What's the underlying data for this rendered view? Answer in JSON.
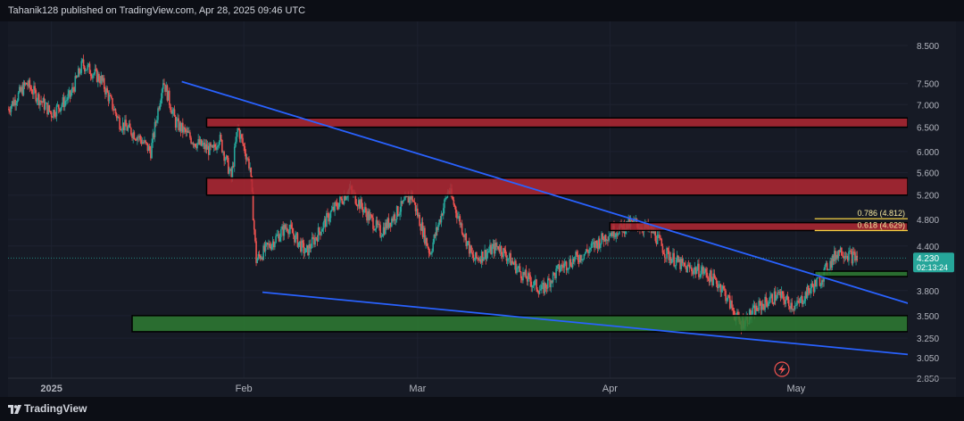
{
  "header": {
    "caption": "Tahanik128 published on TradingView.com, Apr 28, 2025 09:46 UTC"
  },
  "footer": {
    "brand": "TradingView"
  },
  "colors": {
    "background": "#161a25",
    "up_candle": "#26a69a",
    "down_candle": "#ef5350",
    "trendline": "#2962ff",
    "resistance_zone": "#b22833",
    "support_zone": "#2e7d32",
    "fib_line": "#f5d142",
    "price_tag": "#26a69a"
  },
  "icons": {
    "replay": "lightning-icon"
  },
  "chart_data": {
    "type": "candlestick",
    "x_unit": "date",
    "y_scale": "log",
    "xlabel": "",
    "ylabel": "",
    "x_ticks": [
      {
        "date": "2025-01-01",
        "label": "2025"
      },
      {
        "date": "2025-02-01",
        "label": "Feb"
      },
      {
        "date": "2025-03-01",
        "label": "Mar"
      },
      {
        "date": "2025-04-01",
        "label": "Apr"
      },
      {
        "date": "2025-05-01",
        "label": "May"
      }
    ],
    "y_ticks": [
      "8.500",
      "7.500",
      "7.000",
      "6.500",
      "6.000",
      "5.600",
      "5.200",
      "4.800",
      "4.400",
      "3.800",
      "3.500",
      "3.250",
      "3.050",
      "2.850"
    ],
    "ylim": [
      2.85,
      9.2
    ],
    "xlim": [
      "2024-12-25",
      "2025-05-19"
    ],
    "last_price": {
      "value": "4.230",
      "countdown": "02:13:24"
    },
    "price_path": [
      [
        "2024-12-25",
        6.9
      ],
      [
        "2024-12-28",
        7.5
      ],
      [
        "2025-01-01",
        6.8
      ],
      [
        "2025-01-04",
        7.2
      ],
      [
        "2025-01-06",
        8.0
      ],
      [
        "2025-01-09",
        7.6
      ],
      [
        "2025-01-12",
        6.6
      ],
      [
        "2025-01-15",
        6.3
      ],
      [
        "2025-01-17",
        6.0
      ],
      [
        "2025-01-19",
        7.6
      ],
      [
        "2025-01-21",
        6.6
      ],
      [
        "2025-01-24",
        6.2
      ],
      [
        "2025-01-27",
        6.0
      ],
      [
        "2025-01-28",
        6.3
      ],
      [
        "2025-01-30",
        5.5
      ],
      [
        "2025-01-31",
        6.5
      ],
      [
        "2025-02-02",
        5.7
      ],
      [
        "2025-02-03",
        4.2
      ],
      [
        "2025-02-05",
        4.4
      ],
      [
        "2025-02-08",
        4.7
      ],
      [
        "2025-02-11",
        4.3
      ],
      [
        "2025-02-15",
        4.9
      ],
      [
        "2025-02-18",
        5.3
      ],
      [
        "2025-02-23",
        4.6
      ],
      [
        "2025-02-28",
        5.2
      ],
      [
        "2025-03-03",
        4.3
      ],
      [
        "2025-03-06",
        5.3
      ],
      [
        "2025-03-10",
        4.2
      ],
      [
        "2025-03-14",
        4.4
      ],
      [
        "2025-03-18",
        4.0
      ],
      [
        "2025-03-21",
        3.8
      ],
      [
        "2025-03-24",
        4.1
      ],
      [
        "2025-03-28",
        4.3
      ],
      [
        "2025-04-01",
        4.6
      ],
      [
        "2025-04-05",
        4.75
      ],
      [
        "2025-04-08",
        4.6
      ],
      [
        "2025-04-10",
        4.3
      ],
      [
        "2025-04-13",
        4.1
      ],
      [
        "2025-04-16",
        4.05
      ],
      [
        "2025-04-19",
        3.85
      ],
      [
        "2025-04-22",
        3.4
      ],
      [
        "2025-04-25",
        3.6
      ],
      [
        "2025-04-28",
        3.75
      ],
      [
        "2025-05-01",
        3.6
      ],
      [
        "2025-05-03",
        3.8
      ],
      [
        "2025-05-05",
        3.95
      ],
      [
        "2025-05-06",
        4.1
      ],
      [
        "2025-05-08",
        4.35
      ],
      [
        "2025-05-10",
        4.25
      ],
      [
        "2025-05-11",
        4.23
      ]
    ],
    "zones": [
      {
        "name": "resistance-zone-upper",
        "kind": "resistance",
        "from": "2025-01-26",
        "to": "2025-05-19",
        "low": 6.5,
        "high": 6.7
      },
      {
        "name": "resistance-zone-mid",
        "kind": "resistance",
        "from": "2025-01-26",
        "to": "2025-05-19",
        "low": 5.2,
        "high": 5.5
      },
      {
        "name": "resistance-zone-fib",
        "kind": "resistance",
        "from": "2025-04-01",
        "to": "2025-05-19",
        "low": 4.629,
        "high": 4.75
      },
      {
        "name": "support-zone-small",
        "kind": "support",
        "from": "2025-05-04",
        "to": "2025-05-19",
        "low": 3.98,
        "high": 4.05
      },
      {
        "name": "support-zone-wide",
        "kind": "support",
        "from": "2025-01-14",
        "to": "2025-05-19",
        "low": 3.32,
        "high": 3.5
      }
    ],
    "trendlines": [
      {
        "name": "upper-trendline",
        "from": [
          "2025-01-22",
          7.55
        ],
        "to": [
          "2025-06-05",
          3.28
        ]
      },
      {
        "name": "lower-trendline",
        "from": [
          "2025-02-04",
          3.78
        ],
        "to": [
          "2025-06-05",
          2.98
        ]
      }
    ],
    "fib_levels": [
      {
        "name": "fib-0786",
        "label": "0.786 (4.812)",
        "value": 4.812
      },
      {
        "name": "fib-0618",
        "label": "0.618 (4.629)",
        "value": 4.629
      }
    ]
  }
}
